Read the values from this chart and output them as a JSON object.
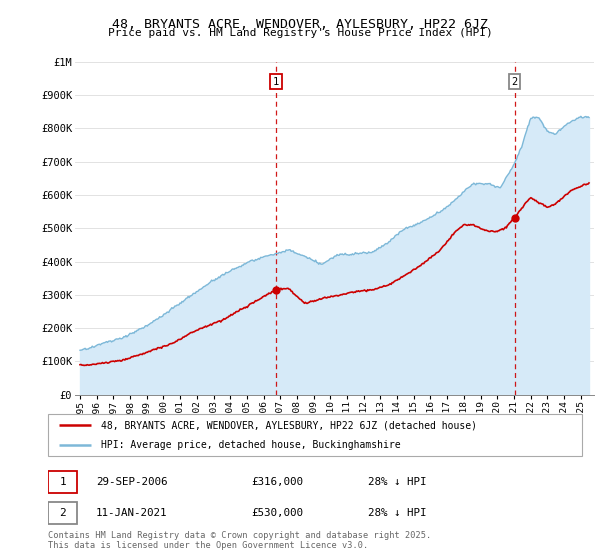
{
  "title": "48, BRYANTS ACRE, WENDOVER, AYLESBURY, HP22 6JZ",
  "subtitle": "Price paid vs. HM Land Registry's House Price Index (HPI)",
  "ylim": [
    0,
    1000000
  ],
  "yticks": [
    0,
    100000,
    200000,
    300000,
    400000,
    500000,
    600000,
    700000,
    800000,
    900000,
    1000000
  ],
  "ytick_labels": [
    "£0",
    "£100K",
    "£200K",
    "£300K",
    "£400K",
    "£500K",
    "£600K",
    "£700K",
    "£800K",
    "£900K",
    "£1M"
  ],
  "hpi_color": "#7db8d8",
  "hpi_fill_color": "#d6eaf8",
  "price_color": "#cc0000",
  "sale1_x": 2006.75,
  "sale1_y": 316000,
  "sale2_x": 2021.04,
  "sale2_y": 530000,
  "vline_color": "#cc0000",
  "ann1_box_color": "#cc0000",
  "ann2_box_color": "#888888",
  "legend_line1": "48, BRYANTS ACRE, WENDOVER, AYLESBURY, HP22 6JZ (detached house)",
  "legend_line2": "HPI: Average price, detached house, Buckinghamshire",
  "sale1_date": "29-SEP-2006",
  "sale1_price_str": "£316,000",
  "sale1_pct": "28% ↓ HPI",
  "sale2_date": "11-JAN-2021",
  "sale2_price_str": "£530,000",
  "sale2_pct": "28% ↓ HPI",
  "footer": "Contains HM Land Registry data © Crown copyright and database right 2025.\nThis data is licensed under the Open Government Licence v3.0.",
  "grid_color": "#dddddd",
  "xlim_start": 1994.7,
  "xlim_end": 2025.8
}
